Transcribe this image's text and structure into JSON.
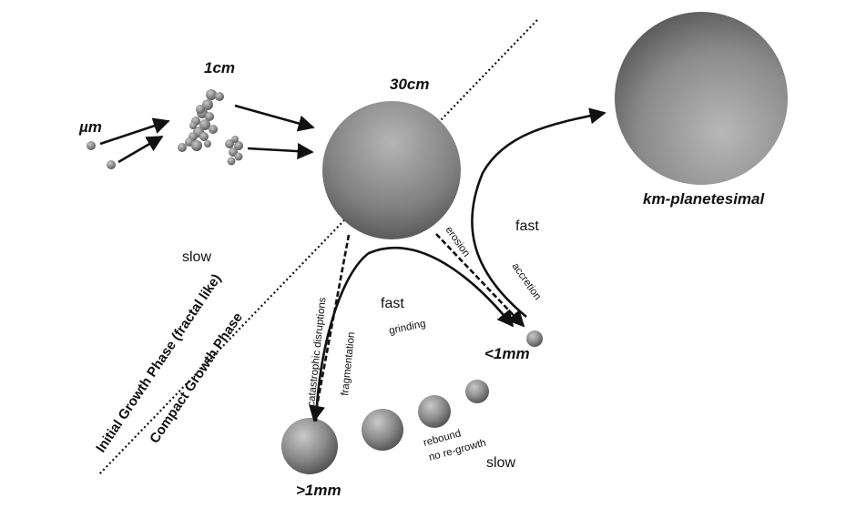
{
  "labels": {
    "um": "µm",
    "cm1": "1cm",
    "cm30": "30cm",
    "km": "km-planetesimal",
    "lt1mm": "<1mm",
    "gt1mm": ">1mm",
    "slow_left": "slow",
    "slow_bottom": "slow",
    "fast_top": "fast",
    "fast_mid": "fast",
    "erosion": "erosion",
    "accretion": "accretion",
    "grinding": "grinding",
    "catastrophic": "catastrophic disruptions",
    "fragmentation": "fragmentation",
    "rebound": "rebound",
    "no_regrowth": "no re-growth",
    "initial_phase": "Initial Growth Phase (fractal like)",
    "compact_phase": "Compact Growth Phase"
  }
}
